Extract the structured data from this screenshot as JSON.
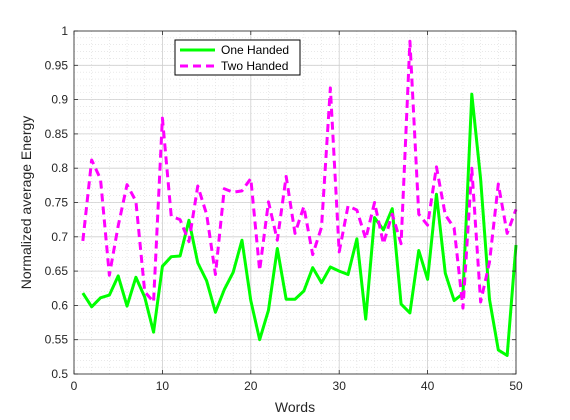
{
  "chart_data": {
    "type": "line",
    "xlabel": "Words",
    "ylabel": "Normalized average Energy",
    "xlim": [
      0,
      50
    ],
    "ylim": [
      0.5,
      1
    ],
    "x_ticks": [
      0,
      10,
      20,
      30,
      40,
      50
    ],
    "y_ticks": [
      0.5,
      0.55,
      0.6,
      0.65,
      0.7,
      0.75,
      0.8,
      0.85,
      0.9,
      0.95,
      1
    ],
    "grid": true,
    "legend_position": "top-left",
    "x": [
      1,
      2,
      3,
      4,
      5,
      6,
      7,
      8,
      9,
      10,
      11,
      12,
      13,
      14,
      15,
      16,
      17,
      18,
      19,
      20,
      21,
      22,
      23,
      24,
      25,
      26,
      27,
      28,
      29,
      30,
      31,
      32,
      33,
      34,
      35,
      36,
      37,
      38,
      39,
      40,
      41,
      42,
      43,
      44,
      45,
      46,
      47,
      48,
      49,
      50
    ],
    "series": [
      {
        "name": "One Handed",
        "color": "#00ff00",
        "style": "solid",
        "values": [
          0.618,
          0.598,
          0.611,
          0.615,
          0.643,
          0.599,
          0.641,
          0.612,
          0.561,
          0.657,
          0.671,
          0.672,
          0.724,
          0.662,
          0.636,
          0.59,
          0.623,
          0.648,
          0.695,
          0.607,
          0.55,
          0.593,
          0.683,
          0.609,
          0.609,
          0.621,
          0.655,
          0.633,
          0.656,
          0.65,
          0.645,
          0.697,
          0.58,
          0.728,
          0.71,
          0.741,
          0.602,
          0.589,
          0.68,
          0.638,
          0.762,
          0.647,
          0.607,
          0.617,
          0.908,
          0.784,
          0.609,
          0.535,
          0.527,
          0.688
        ]
      },
      {
        "name": "Two Handed",
        "color": "#ff00ff",
        "style": "dashed",
        "values": [
          0.694,
          0.812,
          0.784,
          0.644,
          0.716,
          0.776,
          0.752,
          0.62,
          0.605,
          0.873,
          0.73,
          0.725,
          0.693,
          0.774,
          0.733,
          0.645,
          0.77,
          0.765,
          0.767,
          0.785,
          0.651,
          0.751,
          0.695,
          0.788,
          0.705,
          0.744,
          0.674,
          0.714,
          0.917,
          0.678,
          0.745,
          0.739,
          0.697,
          0.75,
          0.69,
          0.733,
          0.69,
          0.985,
          0.733,
          0.717,
          0.802,
          0.732,
          0.713,
          0.596,
          0.8,
          0.605,
          0.663,
          0.777,
          0.705,
          0.74
        ]
      }
    ]
  }
}
